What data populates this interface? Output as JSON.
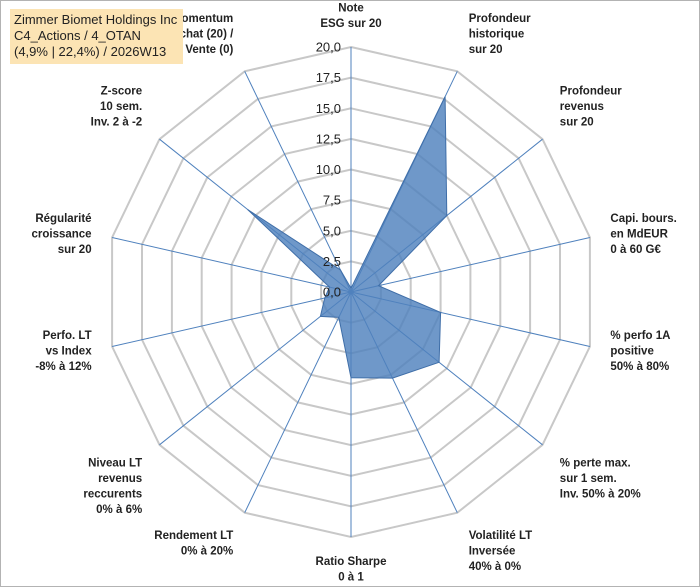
{
  "header": {
    "lines": [
      "Zimmer Biomet Holdings Inc",
      "C4_Actions / 4_OTAN",
      "(4,9% | 22,4%) / 2026W13"
    ]
  },
  "colors": {
    "fill": "#4f81bd",
    "grid": "#c8c8c8",
    "spoke": "#4f81bd",
    "header_bg": "#fce4b4"
  },
  "chart_data": {
    "type": "radar",
    "title": "Zimmer Biomet Holdings Inc",
    "rmin": 0,
    "rmax": 20,
    "ticks": [
      "0,0",
      "2,5",
      "5,0",
      "7,5",
      "10,0",
      "12,5",
      "15,0",
      "17,5",
      "20,0"
    ],
    "tick_values": [
      0,
      2.5,
      5,
      7.5,
      10,
      12.5,
      15,
      17.5,
      20
    ],
    "axes": [
      {
        "label": [
          "Note",
          "ESG sur 20"
        ],
        "value": 0.3
      },
      {
        "label": [
          "Profondeur",
          "historique",
          "sur 20"
        ],
        "value": 17.7
      },
      {
        "label": [
          "Profondeur",
          "revenus",
          "sur 20"
        ],
        "value": 10.0
      },
      {
        "label": [
          "Capi. bours.",
          "en MdEUR",
          "0 à 60 G€"
        ],
        "value": 2.3
      },
      {
        "label": [
          "% perfo 1A",
          "positive",
          "50% à 80%"
        ],
        "value": 7.5
      },
      {
        "label": [
          "% perte max.",
          "sur 1 sem.",
          "Inv. 50% à 20%"
        ],
        "value": 9.2
      },
      {
        "label": [
          "Volatilité LT",
          "Inversée",
          "40% à 0%"
        ],
        "value": 7.8
      },
      {
        "label": [
          "Ratio Sharpe",
          "0 à 1"
        ],
        "value": 7.0
      },
      {
        "label": [
          "Rendement LT",
          "0% à 20%"
        ],
        "value": 2.3
      },
      {
        "label": [
          "Niveau LT",
          "revenus",
          "reccurents",
          "0% à 6%"
        ],
        "value": 3.2
      },
      {
        "label": [
          "Perfo. LT",
          "vs Index",
          "-8% à 12%"
        ],
        "value": 2.2
      },
      {
        "label": [
          "Régularité",
          "croissance",
          "sur 20"
        ],
        "value": 1.8
      },
      {
        "label": [
          "Z-score",
          "10 sem.",
          "Inv. 2 à -2"
        ],
        "value": 10.8
      },
      {
        "label": [
          "Momentum",
          "Achat (20) /",
          "Vente (0)"
        ],
        "value": 2.0
      }
    ]
  }
}
